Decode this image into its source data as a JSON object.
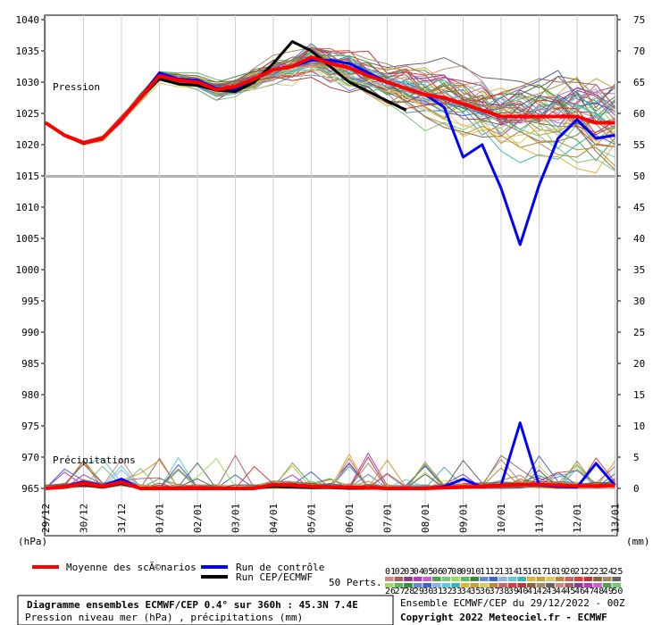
{
  "chart_data": {
    "type": "line",
    "pressure_axis": {
      "unit_label": "(hPa)",
      "min": 965,
      "max": 1040,
      "step": 5,
      "ticks": [
        "1040",
        "1035",
        "1030",
        "1025",
        "1020",
        "1015",
        "1010",
        "1005",
        "1000",
        "995",
        "990",
        "985",
        "980",
        "975",
        "970",
        "965"
      ]
    },
    "precip_axis": {
      "unit_label": "(mm)",
      "ticks": [
        "75",
        "70",
        "65",
        "60",
        "55",
        "50",
        "45",
        "40",
        "35",
        "30",
        "25",
        "20",
        "15",
        "10",
        "5",
        "0"
      ]
    },
    "x_ticks": [
      "29/12",
      "30/12",
      "31/12",
      "01/01",
      "02/01",
      "03/01",
      "04/01",
      "05/01",
      "06/01",
      "07/01",
      "08/01",
      "09/01",
      "10/01",
      "11/01",
      "12/01",
      "13/01"
    ],
    "section_labels": {
      "pressure": "Pression",
      "precip": "Précipitations"
    },
    "series": [
      {
        "name": "Moyenne des scÃ©narios",
        "color": "#ff0000",
        "pressure": [
          1023.5,
          1021.5,
          1020.3,
          1021,
          1024,
          1027.5,
          1031,
          1030.3,
          1030,
          1028.8,
          1029.3,
          1030.5,
          1032,
          1032.5,
          1034,
          1033,
          1032.3,
          1031,
          1030,
          1029,
          1028,
          1027.5,
          1026.5,
          1025.5,
          1024.5,
          1024.5,
          1024.5,
          1024.5,
          1024.5,
          1023.5,
          1023.5
        ],
        "precip": [
          0,
          0.2,
          0.8,
          0.3,
          1,
          0,
          0,
          0,
          0,
          0,
          0,
          0,
          0.6,
          0.5,
          0.3,
          0.2,
          0.2,
          0.1,
          0,
          0,
          0,
          0.1,
          0.2,
          0.3,
          0.5,
          0.6,
          0.6,
          0.5,
          0.4,
          0.4,
          0.5
        ]
      },
      {
        "name": "Run de contrôle",
        "color": "#0000ff",
        "pressure": [
          1023.5,
          1021.5,
          1020.2,
          1021,
          1024,
          1027.5,
          1031.5,
          1030.5,
          1030.3,
          1029,
          1028.8,
          1030.5,
          1032,
          1032.5,
          1033.5,
          1033.5,
          1033,
          1031.5,
          1030,
          1029,
          1028,
          1026,
          1018,
          1020,
          1013,
          1004,
          1013.5,
          1021,
          1024,
          1021,
          1021.5
        ],
        "precip": [
          0,
          0.3,
          1,
          0.4,
          1.5,
          0,
          0,
          0,
          0,
          0,
          0,
          0,
          0.4,
          0.6,
          0.3,
          0.3,
          0.1,
          0,
          0,
          0,
          0,
          0.3,
          1.5,
          0.2,
          0.5,
          10.5,
          0.5,
          0.3,
          0.2,
          4,
          0.5
        ]
      },
      {
        "name": "Run CEP/ECMWF",
        "color": "#000000",
        "pressure": [
          1023.5,
          1021.5,
          1020.2,
          1021,
          1024,
          1027.5,
          1030.5,
          1029.7,
          1029.5,
          1028.7,
          1028.5,
          1030,
          1033,
          1036.5,
          1035,
          1032.5,
          1030,
          1028.5,
          1027,
          1025.5
        ],
        "precip": [
          0,
          0.2,
          0.6,
          0.2,
          0.8,
          0,
          0,
          0,
          0,
          0,
          0,
          0,
          0.3,
          0.2,
          0.1,
          0.1,
          0,
          0,
          0,
          0
        ]
      }
    ],
    "perturbations": {
      "label": "50 Perts.",
      "row1": [
        "01",
        "02",
        "03",
        "04",
        "05",
        "06",
        "07",
        "08",
        "09",
        "10",
        "11",
        "12",
        "13",
        "14",
        "15",
        "16",
        "17",
        "18",
        "19",
        "20",
        "21",
        "22",
        "23",
        "24",
        "25"
      ],
      "row2": [
        "26",
        "27",
        "28",
        "29",
        "30",
        "31",
        "32",
        "33",
        "34",
        "35",
        "36",
        "37",
        "38",
        "39",
        "40",
        "41",
        "42",
        "43",
        "44",
        "45",
        "46",
        "47",
        "48",
        "49",
        "50"
      ],
      "colors": [
        "#c88c8c",
        "#a06464",
        "#8c3c8c",
        "#b43cb4",
        "#c864c8",
        "#50a050",
        "#78c878",
        "#a0dc64",
        "#64b464",
        "#3c8c3c",
        "#648cc8",
        "#3c64c8",
        "#8cb4dc",
        "#64c8dc",
        "#3cb4b4",
        "#dcb43c",
        "#c8a03c",
        "#dcc864",
        "#b48c3c",
        "#c86464",
        "#dc3c3c",
        "#b43c3c",
        "#8c643c",
        "#a08c64",
        "#646464"
      ]
    }
  },
  "footer": {
    "title": "Diagramme ensembles ECMWF/CEP 0.4° sur 360h : 45.3N 7.4E",
    "subtitle": "Pression niveau mer (hPa) , précipitations (mm)",
    "run_info": "Ensemble ECMWF/CEP du 29/12/2022 - 00Z",
    "copyright": "Copyright 2022 Meteociel.fr - ECMWF"
  }
}
